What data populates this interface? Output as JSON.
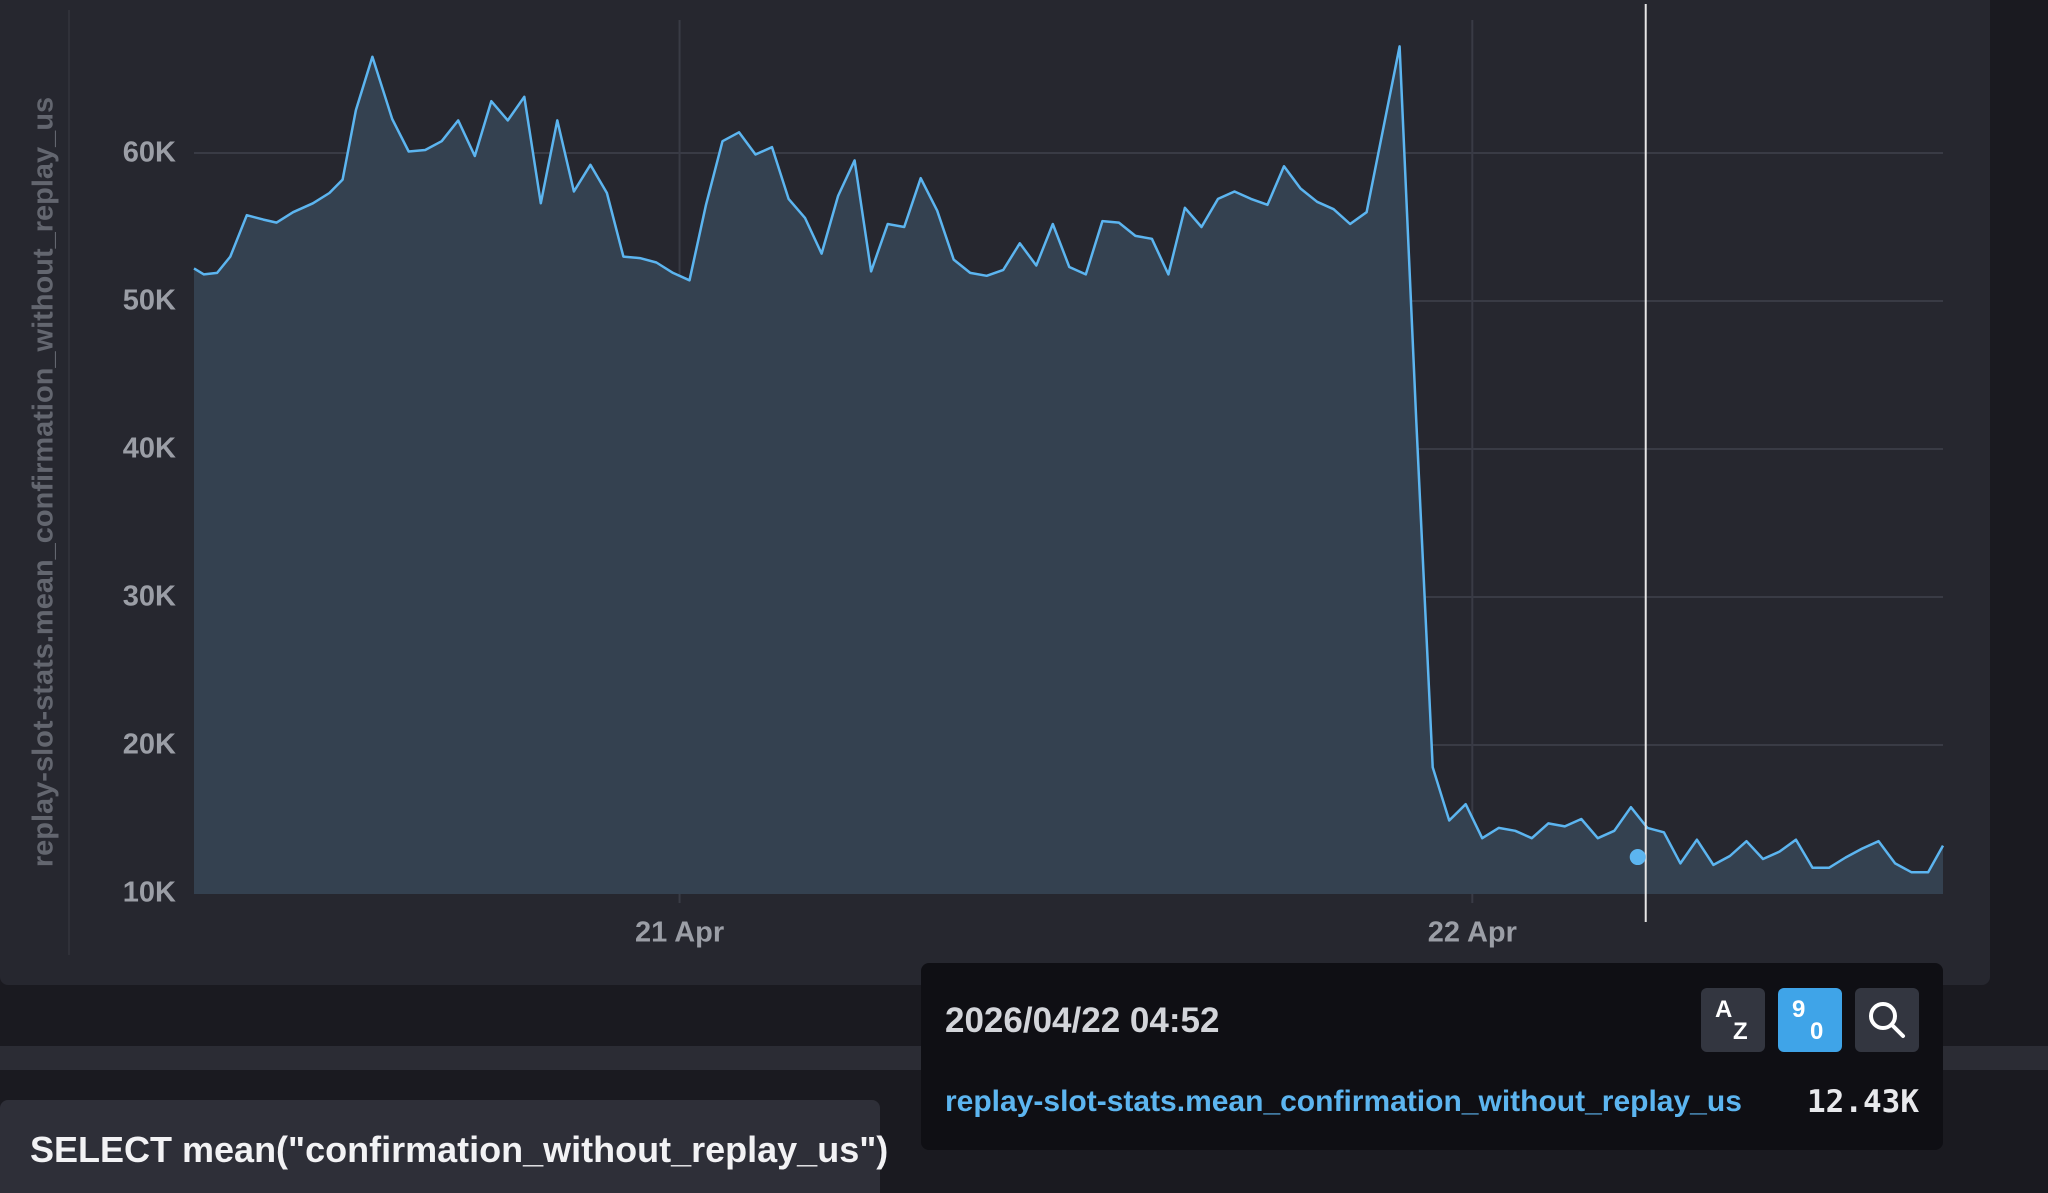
{
  "chart_data": {
    "type": "area",
    "ylabel": "replay-slot-stats.mean_confirmation_without_replay_us",
    "yticks": [
      "10K",
      "20K",
      "30K",
      "40K",
      "50K",
      "60K"
    ],
    "ytick_values": [
      10000,
      20000,
      30000,
      40000,
      50000,
      60000
    ],
    "xticks": [
      "21 Apr",
      "22 Apr"
    ],
    "xtick_values": [
      24.5,
      48.5
    ],
    "xlim": [
      9.8,
      62.75
    ],
    "ylim": [
      9000,
      68800
    ],
    "grid": true,
    "series": [
      {
        "values": [
          [
            9.8,
            52200
          ],
          [
            10.1,
            51800
          ],
          [
            10.5,
            51900
          ],
          [
            10.9,
            53000
          ],
          [
            11.4,
            55800
          ],
          [
            11.9,
            55500
          ],
          [
            12.3,
            55300
          ],
          [
            12.8,
            56000
          ],
          [
            13.4,
            56600
          ],
          [
            13.9,
            57300
          ],
          [
            14.3,
            58200
          ],
          [
            14.7,
            62900
          ],
          [
            15.2,
            66500
          ],
          [
            15.8,
            62300
          ],
          [
            16.3,
            60100
          ],
          [
            16.8,
            60200
          ],
          [
            17.3,
            60800
          ],
          [
            17.8,
            62200
          ],
          [
            18.3,
            59800
          ],
          [
            18.8,
            63500
          ],
          [
            19.3,
            62200
          ],
          [
            19.8,
            63800
          ],
          [
            20.3,
            56600
          ],
          [
            20.8,
            62200
          ],
          [
            21.3,
            57400
          ],
          [
            21.8,
            59200
          ],
          [
            22.3,
            57300
          ],
          [
            22.8,
            53000
          ],
          [
            23.3,
            52900
          ],
          [
            23.8,
            52600
          ],
          [
            24.3,
            51900
          ],
          [
            24.8,
            51400
          ],
          [
            25.3,
            56500
          ],
          [
            25.8,
            60800
          ],
          [
            26.3,
            61400
          ],
          [
            26.8,
            59900
          ],
          [
            27.3,
            60400
          ],
          [
            27.8,
            56900
          ],
          [
            28.3,
            55600
          ],
          [
            28.8,
            53200
          ],
          [
            29.3,
            57100
          ],
          [
            29.8,
            59500
          ],
          [
            30.3,
            52000
          ],
          [
            30.8,
            55200
          ],
          [
            31.3,
            55000
          ],
          [
            31.8,
            58300
          ],
          [
            32.3,
            56100
          ],
          [
            32.8,
            52800
          ],
          [
            33.3,
            51900
          ],
          [
            33.8,
            51700
          ],
          [
            34.3,
            52100
          ],
          [
            34.8,
            53900
          ],
          [
            35.3,
            52400
          ],
          [
            35.8,
            55200
          ],
          [
            36.3,
            52300
          ],
          [
            36.8,
            51800
          ],
          [
            37.3,
            55400
          ],
          [
            37.8,
            55300
          ],
          [
            38.3,
            54400
          ],
          [
            38.8,
            54200
          ],
          [
            39.3,
            51800
          ],
          [
            39.8,
            56300
          ],
          [
            40.3,
            55000
          ],
          [
            40.8,
            56900
          ],
          [
            41.3,
            57400
          ],
          [
            41.8,
            56900
          ],
          [
            42.3,
            56500
          ],
          [
            42.8,
            59100
          ],
          [
            43.3,
            57600
          ],
          [
            43.8,
            56700
          ],
          [
            44.3,
            56200
          ],
          [
            44.8,
            55200
          ],
          [
            45.3,
            56000
          ],
          [
            45.8,
            61600
          ],
          [
            46.3,
            67200
          ],
          [
            46.8,
            42000
          ],
          [
            47.3,
            18500
          ],
          [
            47.8,
            14900
          ],
          [
            48.3,
            16000
          ],
          [
            48.8,
            13700
          ],
          [
            49.3,
            14400
          ],
          [
            49.8,
            14200
          ],
          [
            50.3,
            13700
          ],
          [
            50.8,
            14700
          ],
          [
            51.3,
            14500
          ],
          [
            51.8,
            15000
          ],
          [
            52.3,
            13700
          ],
          [
            52.8,
            14200
          ],
          [
            53.3,
            15800
          ],
          [
            53.8,
            14400
          ],
          [
            54.3,
            14100
          ],
          [
            54.8,
            12000
          ],
          [
            55.3,
            13600
          ],
          [
            55.8,
            11900
          ],
          [
            56.3,
            12500
          ],
          [
            56.8,
            13500
          ],
          [
            57.3,
            12300
          ],
          [
            57.8,
            12800
          ],
          [
            58.3,
            13600
          ],
          [
            58.8,
            11700
          ],
          [
            59.3,
            11700
          ],
          [
            59.8,
            12400
          ],
          [
            60.3,
            13000
          ],
          [
            60.8,
            13500
          ],
          [
            61.3,
            12000
          ],
          [
            61.8,
            11400
          ],
          [
            62.3,
            11400
          ],
          [
            62.75,
            13200
          ]
        ]
      }
    ],
    "cursor": {
      "time": "2026/04/22 04:52",
      "x": 53.75,
      "y": 12430
    }
  },
  "tooltip": {
    "time": "2026/04/22 04:52",
    "series_name": "replay-slot-stats.mean_confirmation_without_replay_us",
    "value": "12.43K",
    "sort_alpha_top": "A",
    "sort_alpha_bottom": "Z",
    "sort_num_top": "9",
    "sort_num_bottom": "0"
  },
  "query": {
    "text": "SELECT mean(\"confirmation_without_replay_us\")"
  }
}
